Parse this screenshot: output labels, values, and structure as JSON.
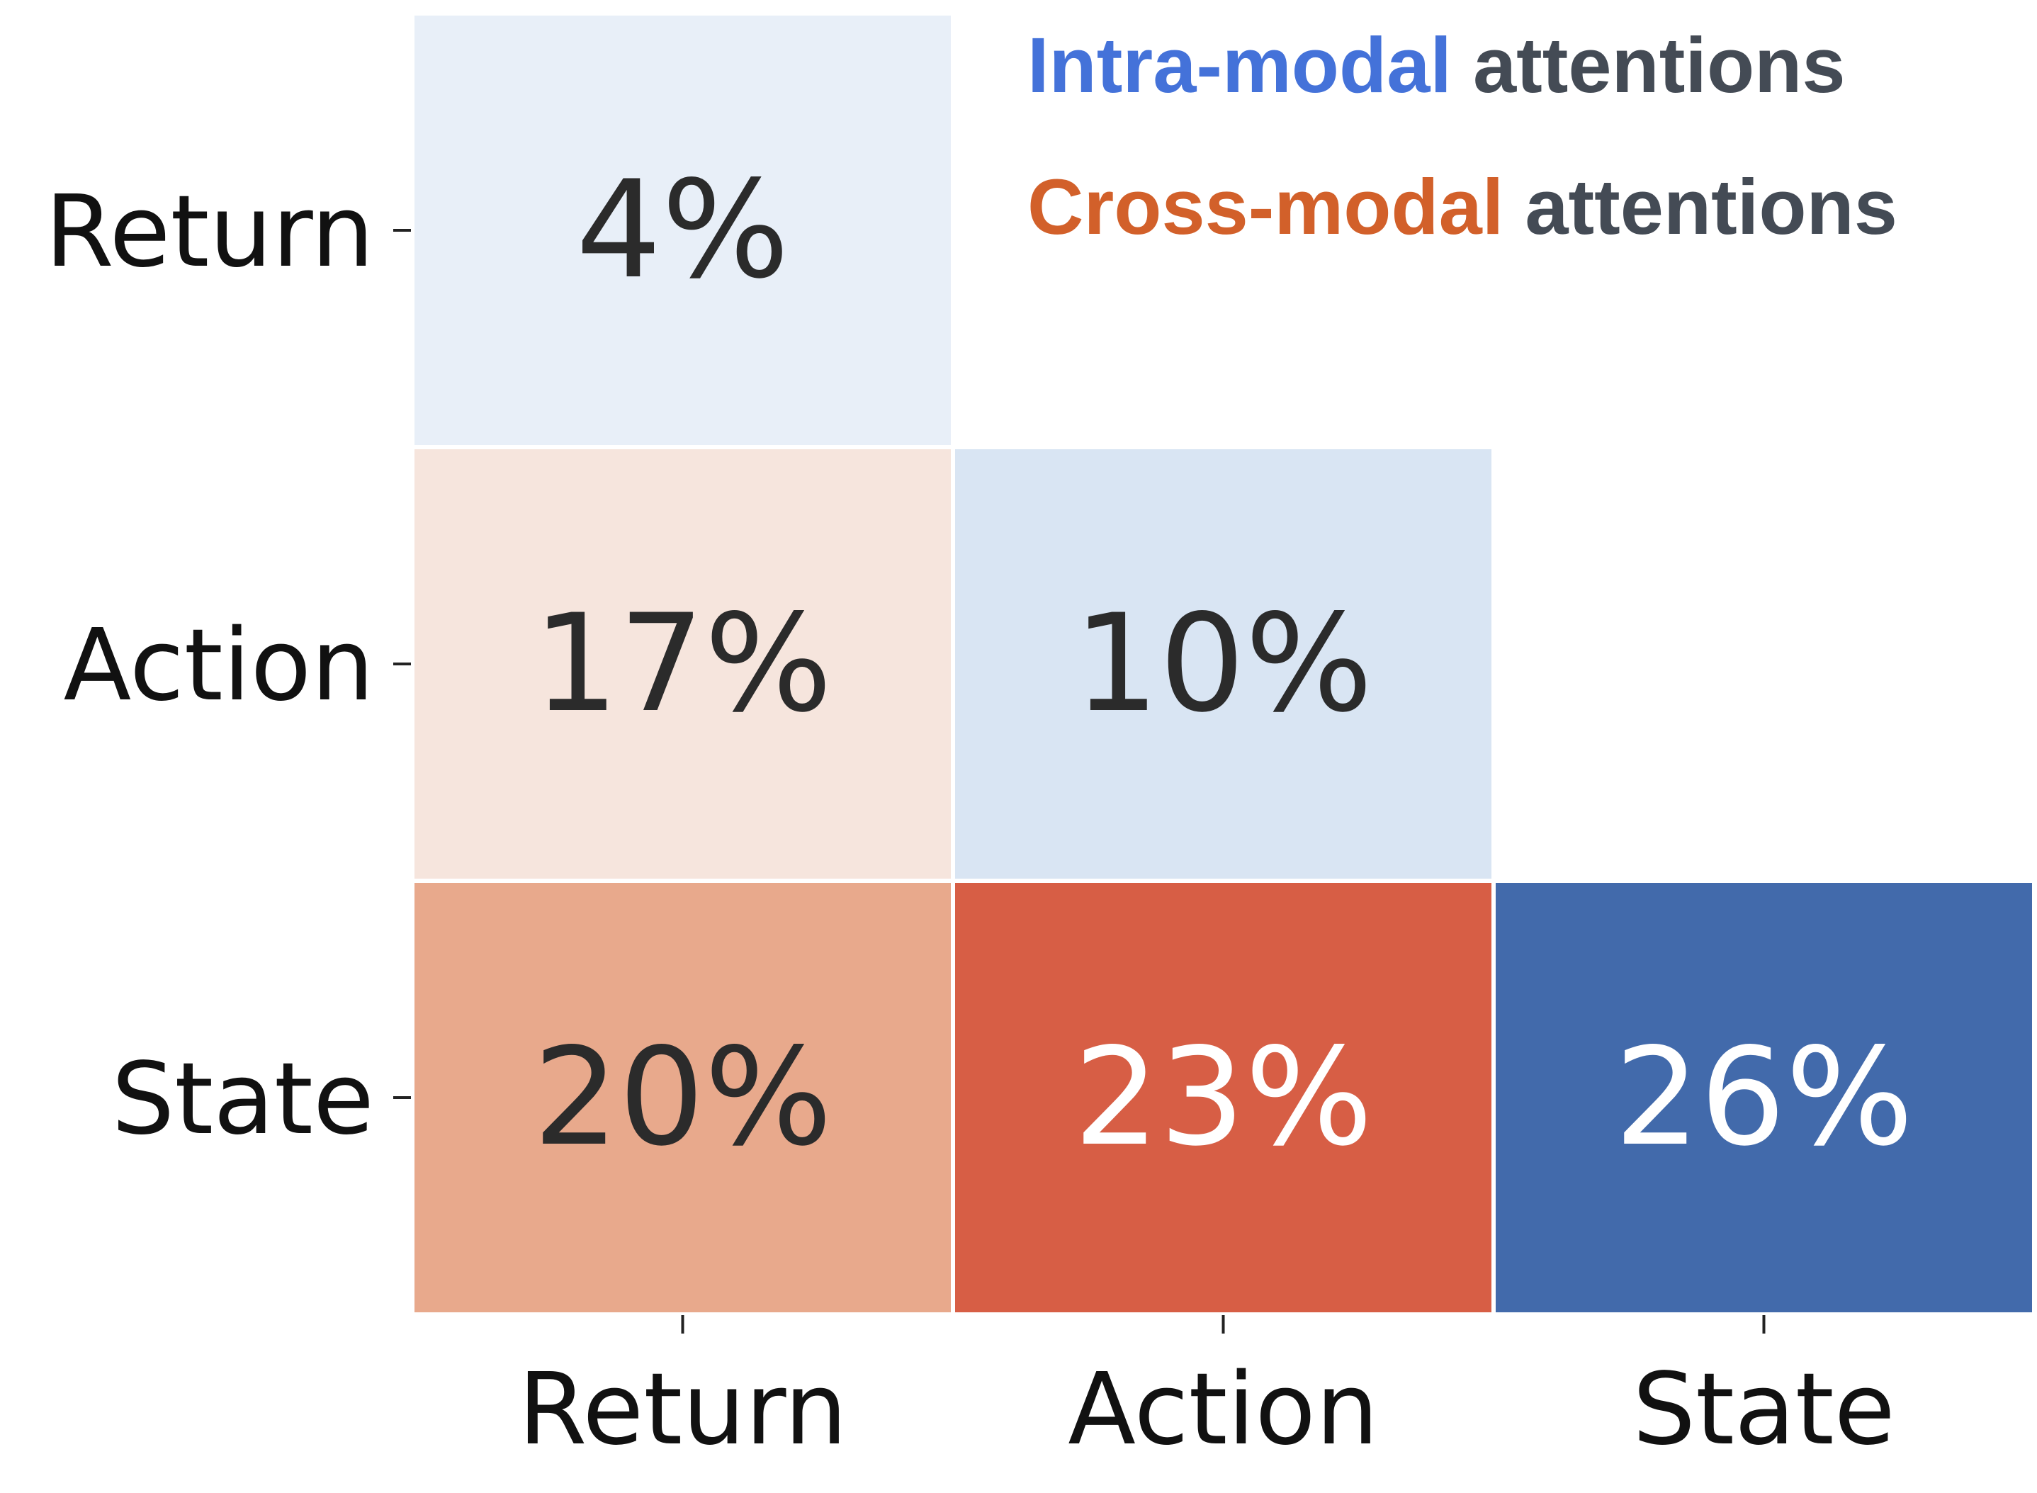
{
  "chart_data": {
    "type": "heatmap",
    "rows": [
      "Return",
      "Action",
      "State"
    ],
    "columns": [
      "Return",
      "Action",
      "State"
    ],
    "cells": [
      {
        "row": "Return",
        "col": "Return",
        "value": 4,
        "label": "4%",
        "kind": "intra"
      },
      {
        "row": "Action",
        "col": "Return",
        "value": 17,
        "label": "17%",
        "kind": "cross"
      },
      {
        "row": "Action",
        "col": "Action",
        "value": 10,
        "label": "10%",
        "kind": "intra"
      },
      {
        "row": "State",
        "col": "Return",
        "value": 20,
        "label": "20%",
        "kind": "cross"
      },
      {
        "row": "State",
        "col": "Action",
        "value": 23,
        "label": "23%",
        "kind": "cross"
      },
      {
        "row": "State",
        "col": "State",
        "value": 26,
        "label": "26%",
        "kind": "intra"
      }
    ],
    "masked": "upper-triangle",
    "colors": {
      "intra_scale": [
        "#e8eff8",
        "#cddcee",
        "#426aab"
      ],
      "cross_scale": [
        "#f6e5dd",
        "#e8a98c",
        "#d75e45"
      ],
      "text_dark": "#2b2b2b",
      "text_light": "#ffffff"
    }
  },
  "legend": {
    "intra_prefix": "Intra-modal",
    "cross_prefix": "Cross-modal",
    "suffix": "attentions",
    "intra_color": "#4472d9",
    "cross_color": "#d2602a",
    "suffix_color": "#444b55"
  }
}
